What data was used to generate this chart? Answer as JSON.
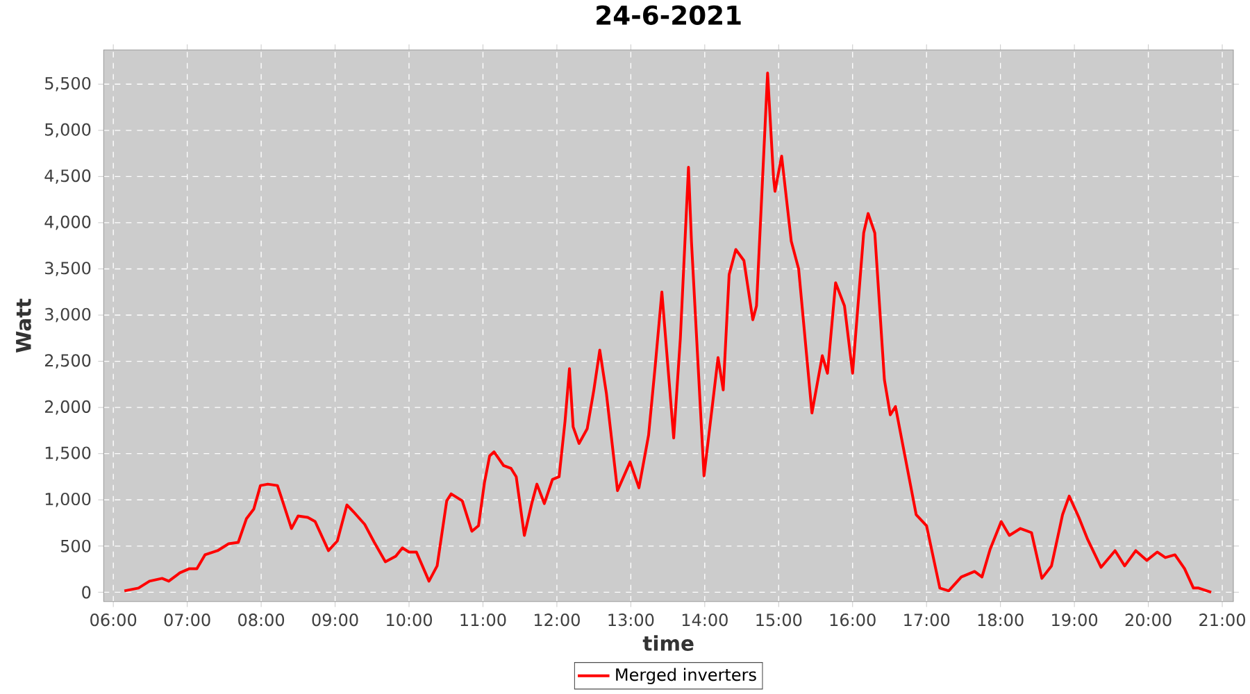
{
  "chart_data": {
    "type": "line",
    "title": "24-6-2021",
    "xlabel": "time",
    "ylabel": "Watt",
    "xlim": [
      5.87,
      21.15
    ],
    "ylim": [
      -100,
      5870
    ],
    "xticks": [
      {
        "value": 6,
        "label": "06:00"
      },
      {
        "value": 7,
        "label": "07:00"
      },
      {
        "value": 8,
        "label": "08:00"
      },
      {
        "value": 9,
        "label": "09:00"
      },
      {
        "value": 10,
        "label": "10:00"
      },
      {
        "value": 11,
        "label": "11:00"
      },
      {
        "value": 12,
        "label": "12:00"
      },
      {
        "value": 13,
        "label": "13:00"
      },
      {
        "value": 14,
        "label": "14:00"
      },
      {
        "value": 15,
        "label": "15:00"
      },
      {
        "value": 16,
        "label": "16:00"
      },
      {
        "value": 17,
        "label": "17:00"
      },
      {
        "value": 18,
        "label": "18:00"
      },
      {
        "value": 19,
        "label": "19:00"
      },
      {
        "value": 20,
        "label": "20:00"
      },
      {
        "value": 21,
        "label": "21:00"
      }
    ],
    "yticks": [
      0,
      500,
      {
        "value": 1000,
        "label": "1,000"
      },
      {
        "value": 1500,
        "label": "1,500"
      },
      {
        "value": 2000,
        "label": "2,000"
      },
      {
        "value": 2500,
        "label": "2,500"
      },
      {
        "value": 3000,
        "label": "3,000"
      },
      {
        "value": 3500,
        "label": "3,500"
      },
      {
        "value": 4000,
        "label": "4,000"
      },
      {
        "value": 4500,
        "label": "4,500"
      },
      {
        "value": 5000,
        "label": "5,000"
      },
      {
        "value": 5500,
        "label": "5,500"
      }
    ],
    "grid": true,
    "legend": "bottom",
    "line_style": "solid",
    "series": [
      {
        "name": "Merged inverters",
        "color": "#ff0000",
        "x": [
          6.15,
          6.34,
          6.49,
          6.66,
          6.75,
          6.9,
          7.03,
          7.13,
          7.24,
          7.41,
          7.56,
          7.69,
          7.8,
          7.9,
          7.99,
          8.09,
          8.22,
          8.27,
          8.41,
          8.5,
          8.63,
          8.73,
          8.91,
          9.03,
          9.16,
          9.25,
          9.4,
          9.53,
          9.68,
          9.82,
          9.91,
          10.0,
          10.1,
          10.27,
          10.38,
          10.51,
          10.57,
          10.72,
          10.85,
          10.94,
          11.02,
          11.09,
          11.15,
          11.28,
          11.38,
          11.45,
          11.56,
          11.66,
          11.73,
          11.83,
          11.94,
          12.03,
          12.11,
          12.17,
          12.22,
          12.3,
          12.41,
          12.5,
          12.58,
          12.67,
          12.82,
          12.99,
          13.11,
          13.24,
          13.33,
          13.42,
          13.58,
          13.67,
          13.78,
          13.82,
          13.99,
          14.18,
          14.25,
          14.33,
          14.42,
          14.53,
          14.65,
          14.7,
          14.85,
          14.93,
          14.95,
          15.04,
          15.17,
          15.27,
          15.45,
          15.59,
          15.66,
          15.77,
          15.89,
          16.0,
          16.15,
          16.21,
          16.3,
          16.43,
          16.51,
          16.58,
          16.68,
          16.86,
          17.0,
          17.18,
          17.3,
          17.47,
          17.65,
          17.75,
          17.86,
          18.01,
          18.12,
          18.27,
          18.42,
          18.56,
          18.69,
          18.84,
          18.93,
          19.06,
          19.18,
          19.36,
          19.55,
          19.68,
          19.83,
          19.98,
          20.12,
          20.23,
          20.36,
          20.49,
          20.61,
          20.68,
          20.85
        ],
        "values": [
          15,
          45,
          120,
          150,
          120,
          210,
          255,
          255,
          405,
          450,
          525,
          540,
          795,
          900,
          1155,
          1170,
          1155,
          1035,
          690,
          825,
          810,
          765,
          450,
          555,
          945,
          870,
          735,
          540,
          330,
          390,
          480,
          435,
          435,
          120,
          285,
          990,
          1065,
          990,
          660,
          720,
          1185,
          1475,
          1520,
          1370,
          1340,
          1250,
          615,
          960,
          1170,
          960,
          1220,
          1250,
          1850,
          2420,
          1790,
          1610,
          1770,
          2190,
          2620,
          2150,
          1100,
          1410,
          1130,
          1700,
          2450,
          3250,
          1670,
          2750,
          4600,
          3800,
          1260,
          2540,
          2190,
          3440,
          3710,
          3590,
          2950,
          3100,
          5620,
          4490,
          4340,
          4720,
          3800,
          3500,
          1940,
          2560,
          2370,
          3350,
          3100,
          2370,
          3890,
          4100,
          3890,
          2300,
          1920,
          2010,
          1590,
          840,
          720,
          45,
          15,
          165,
          225,
          165,
          465,
          765,
          615,
          690,
          645,
          150,
          285,
          840,
          1040,
          810,
          570,
          270,
          450,
          285,
          450,
          345,
          435,
          375,
          405,
          255,
          45,
          45,
          0
        ]
      }
    ]
  }
}
